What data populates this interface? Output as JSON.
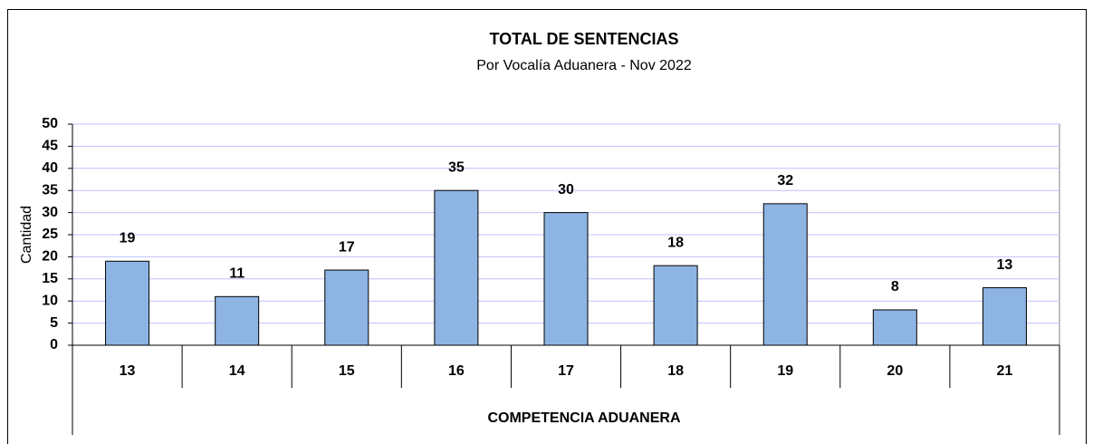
{
  "chart_data": {
    "type": "bar",
    "title": "TOTAL DE SENTENCIAS",
    "subtitle": "Por Vocalía Aduanera - Nov 2022",
    "x_label": "COMPETENCIA ADUANERA",
    "y_label": "Cantidad",
    "categories": [
      "13",
      "14",
      "15",
      "16",
      "17",
      "18",
      "19",
      "20",
      "21"
    ],
    "values": [
      19,
      11,
      17,
      35,
      30,
      18,
      32,
      8,
      13
    ],
    "color": "#8eb4e3",
    "ylim": [
      0,
      50
    ],
    "yticks": [
      0,
      5,
      10,
      15,
      20,
      25,
      30,
      35,
      40,
      45,
      50
    ],
    "grid": true
  }
}
